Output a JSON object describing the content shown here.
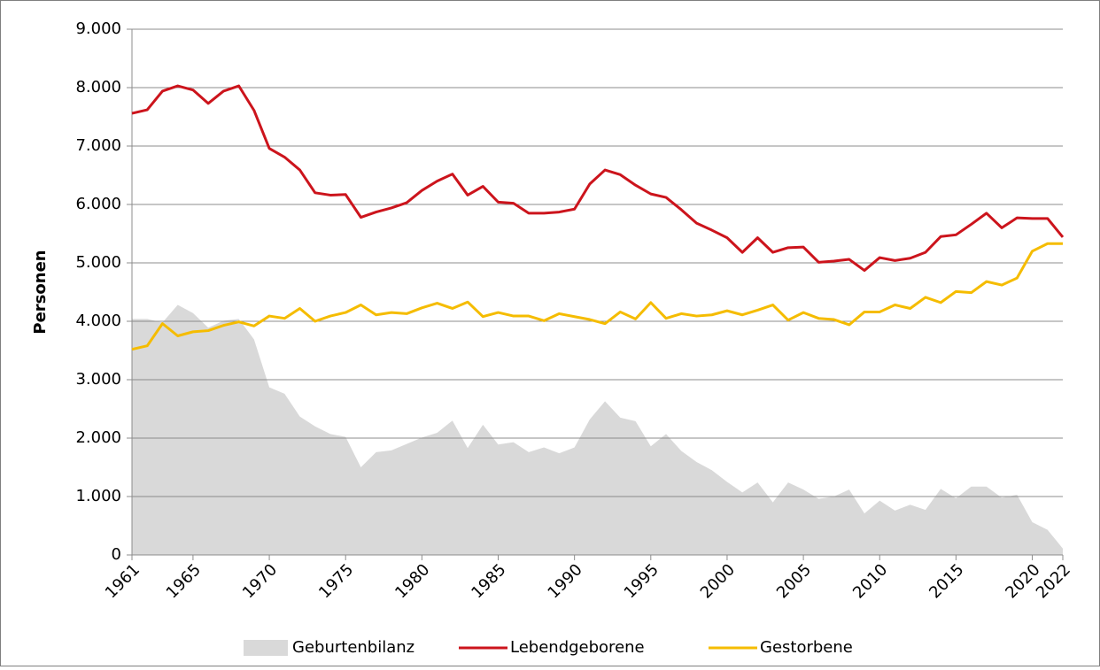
{
  "chart_data": {
    "type": "line",
    "y_label": "Personen",
    "x": [
      1961,
      1962,
      1963,
      1964,
      1965,
      1966,
      1967,
      1968,
      1969,
      1970,
      1971,
      1972,
      1973,
      1974,
      1975,
      1976,
      1977,
      1978,
      1979,
      1980,
      1981,
      1982,
      1983,
      1984,
      1985,
      1986,
      1987,
      1988,
      1989,
      1990,
      1991,
      1992,
      1993,
      1994,
      1995,
      1996,
      1997,
      1998,
      1999,
      2000,
      2001,
      2002,
      2003,
      2004,
      2005,
      2006,
      2007,
      2008,
      2009,
      2010,
      2011,
      2012,
      2013,
      2014,
      2015,
      2016,
      2017,
      2018,
      2019,
      2020,
      2021,
      2022
    ],
    "xlim": [
      1961,
      2022
    ],
    "xticks": [
      1961,
      1965,
      1970,
      1975,
      1980,
      1985,
      1990,
      1995,
      2000,
      2005,
      2010,
      2015,
      2020,
      2022
    ],
    "ylim": [
      0,
      9000
    ],
    "yticks": [
      0,
      {
        "value": 1000,
        "label": "1.000"
      },
      {
        "value": 2000,
        "label": "2.000"
      },
      {
        "value": 3000,
        "label": "3.000"
      },
      {
        "value": 4000,
        "label": "4.000"
      },
      {
        "value": 5000,
        "label": "5.000"
      },
      {
        "value": 6000,
        "label": "6.000"
      },
      {
        "value": 7000,
        "label": "7.000"
      },
      {
        "value": 8000,
        "label": "8.000"
      },
      {
        "value": 9000,
        "label": "9.000"
      }
    ],
    "grid": true,
    "legend": "bottom",
    "series": [
      {
        "name": "Geburtenbilanz",
        "type": "area",
        "color": "#d9d9d9",
        "values": [
          4040,
          4040,
          3980,
          4280,
          4140,
          3890,
          4010,
          4040,
          3690,
          2870,
          2760,
          2370,
          2200,
          2070,
          2020,
          1500,
          1760,
          1790,
          1900,
          2010,
          2090,
          2300,
          1830,
          2230,
          1890,
          1930,
          1760,
          1840,
          1740,
          1840,
          2320,
          2630,
          2350,
          2290,
          1860,
          2070,
          1780,
          1590,
          1450,
          1250,
          1070,
          1240,
          900,
          1240,
          1120,
          960,
          1000,
          1120,
          710,
          930,
          760,
          860,
          770,
          1130,
          970,
          1170,
          1170,
          980,
          1030,
          560,
          430,
          110
        ]
      },
      {
        "name": "Lebendgeborene",
        "type": "line",
        "color": "#cc141c",
        "values": [
          7560,
          7620,
          7940,
          8030,
          7960,
          7730,
          7940,
          8030,
          7610,
          6960,
          6810,
          6590,
          6200,
          6160,
          6170,
          5780,
          5870,
          5940,
          6030,
          6240,
          6400,
          6520,
          6160,
          6310,
          6040,
          6020,
          5850,
          5850,
          5870,
          5920,
          6350,
          6590,
          6510,
          6330,
          6180,
          6120,
          5910,
          5680,
          5560,
          5430,
          5180,
          5430,
          5180,
          5260,
          5270,
          5010,
          5030,
          5060,
          4870,
          5090,
          5040,
          5080,
          5180,
          5450,
          5480,
          5660,
          5850,
          5600,
          5770,
          5760,
          5760,
          5440
        ]
      },
      {
        "name": "Gestorbene",
        "type": "line",
        "color": "#f5bc00",
        "values": [
          3520,
          3580,
          3960,
          3750,
          3820,
          3840,
          3930,
          3990,
          3920,
          4090,
          4050,
          4220,
          4000,
          4090,
          4150,
          4280,
          4110,
          4150,
          4130,
          4230,
          4310,
          4220,
          4330,
          4080,
          4150,
          4090,
          4090,
          4010,
          4130,
          4080,
          4030,
          3960,
          4160,
          4040,
          4320,
          4050,
          4130,
          4090,
          4110,
          4180,
          4110,
          4190,
          4280,
          4020,
          4150,
          4050,
          4030,
          3940,
          4160,
          4160,
          4280,
          4220,
          4410,
          4320,
          4510,
          4490,
          4680,
          4620,
          4740,
          5200,
          5330,
          5330
        ]
      }
    ]
  }
}
